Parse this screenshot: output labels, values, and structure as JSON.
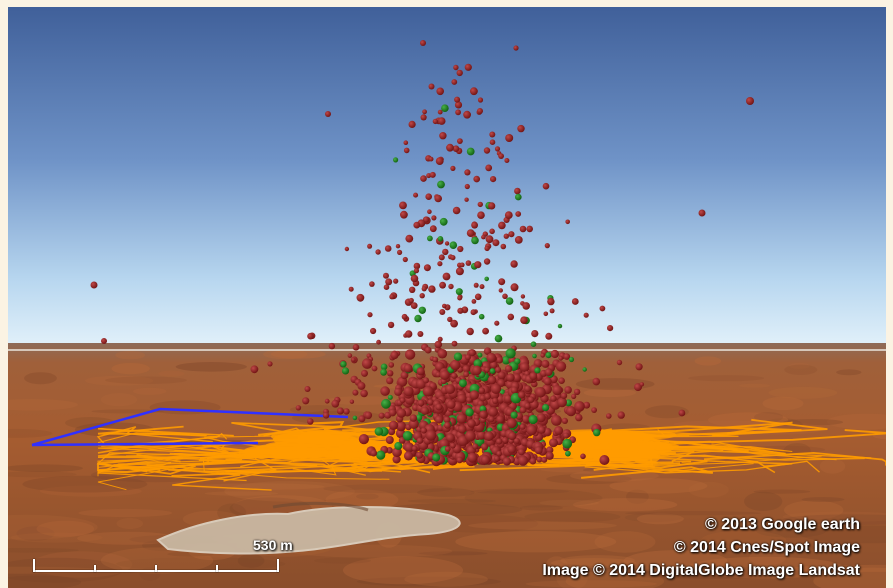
{
  "map": {
    "attribution": [
      "© 2013 Google earth",
      "© 2014 Cnes/Spot Image",
      "Image © 2014 DigitalGlobe Image Landsat"
    ],
    "scale": {
      "label": "530 m",
      "ticks": 5
    }
  },
  "colors": {
    "sky_top": "#40609a",
    "sky_horizon": "#d9ecf8",
    "ground": "#9a5a32",
    "points_red": "#8b1a1a",
    "points_green": "#1f8a1f",
    "tracks": "#ff9b00",
    "boundary": "#3333ff"
  },
  "layers": [
    {
      "name": "red-points",
      "color": "#8b1a1a"
    },
    {
      "name": "green-points",
      "color": "#1f8a1f"
    },
    {
      "name": "orange-tracks",
      "color": "#ff9b00"
    },
    {
      "name": "blue-boundary",
      "color": "#3333ff"
    }
  ]
}
